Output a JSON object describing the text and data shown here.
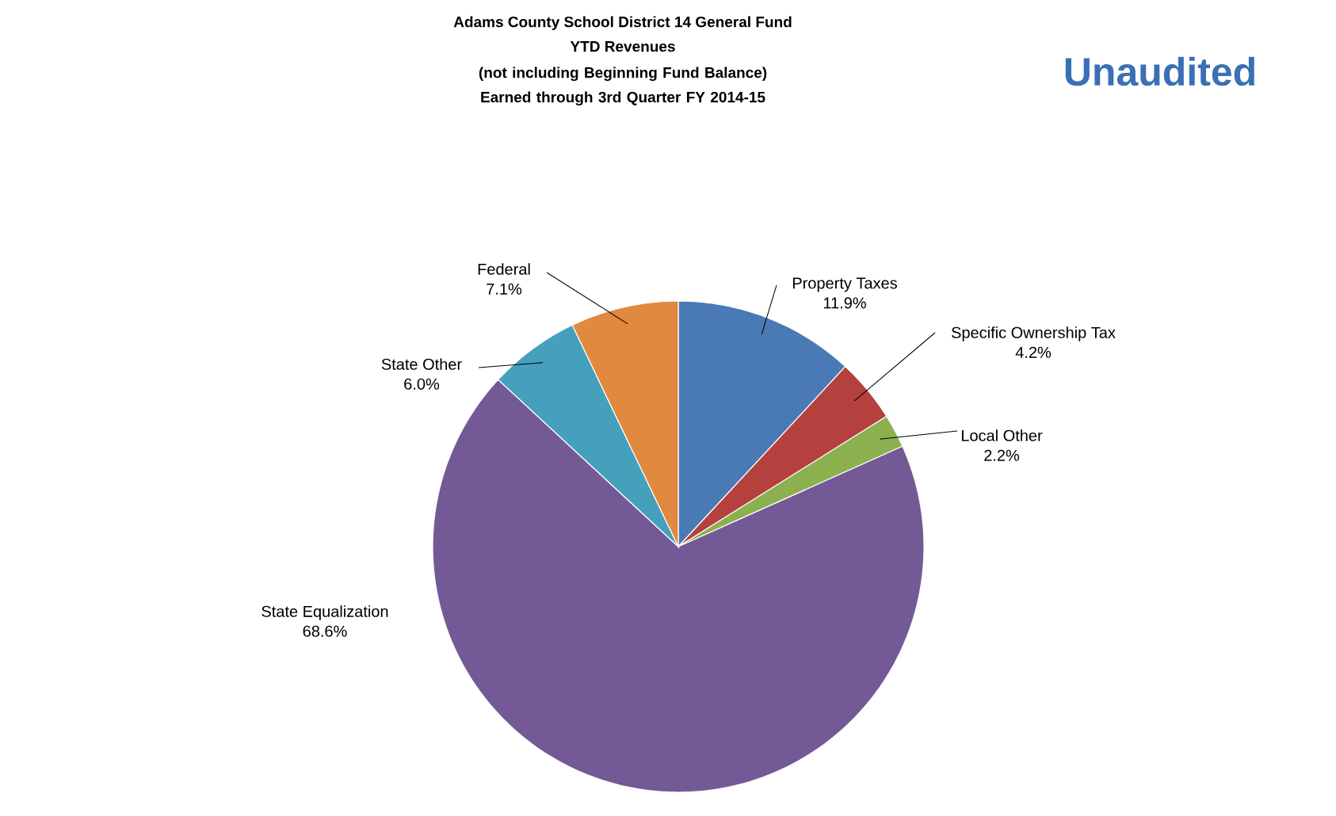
{
  "chart_data": {
    "type": "pie",
    "title": "Adams County School District 14 General Fund YTD Revenues",
    "subtitle": "(not including Beginning Fund Balance) Earned through 3rd Quarter FY 2014-15",
    "annotations": [
      "Unaudited"
    ],
    "categories": [
      "Property Taxes",
      "Specific Ownership Tax",
      "Local Other",
      "State Equalization",
      "State Other",
      "Federal"
    ],
    "values": [
      11.9,
      4.2,
      2.2,
      68.6,
      6.0,
      7.1
    ],
    "value_labels": [
      "11.9%",
      "4.2%",
      "2.2%",
      "68.6%",
      "6.0%",
      "7.1%"
    ],
    "colors": [
      "#4a7ab5",
      "#b5413f",
      "#8db04e",
      "#735a96",
      "#45a0bb",
      "#e0893f"
    ]
  }
}
